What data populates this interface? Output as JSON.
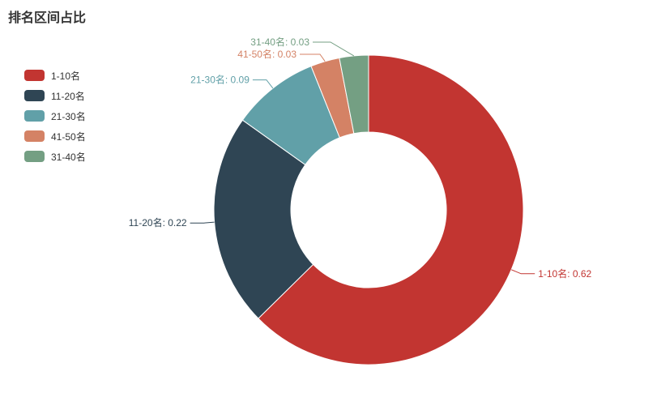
{
  "chart_data": {
    "type": "pie",
    "subtype": "donut",
    "title": "排名区间占比",
    "label_format": "{name}: {value}",
    "inner_radius_pct": 50,
    "legend_position": "left",
    "slices": [
      {
        "label": "1-10名",
        "value": 0.62,
        "color": "#c23531"
      },
      {
        "label": "11-20名",
        "value": 0.22,
        "color": "#2f4554"
      },
      {
        "label": "21-30名",
        "value": 0.09,
        "color": "#61a0a8"
      },
      {
        "label": "41-50名",
        "value": 0.03,
        "color": "#d48265"
      },
      {
        "label": "31-40名",
        "value": 0.03,
        "color": "#749f83"
      }
    ]
  },
  "styles": {
    "title_color": "#333333",
    "legend_text_color": "#333333",
    "background": "#ffffff"
  }
}
